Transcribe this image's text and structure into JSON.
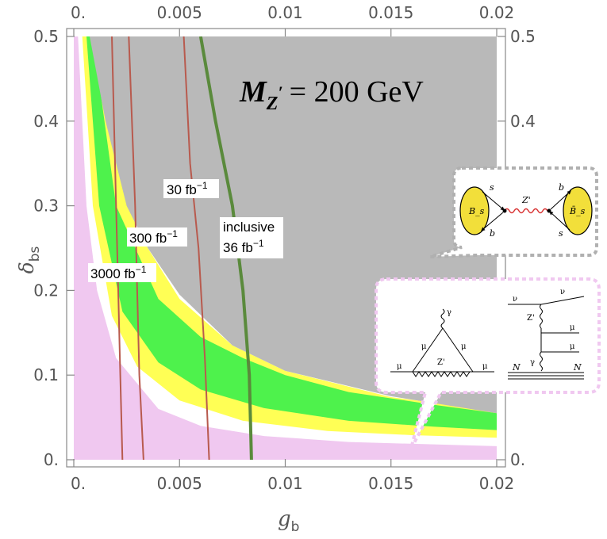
{
  "chart_data": {
    "type": "contour",
    "title": "M_Z' = 200 GeV",
    "title_parts": {
      "symbol": "M",
      "subscript": "Z",
      "prime": "′",
      "value": "= 200 GeV"
    },
    "xlabel": {
      "symbol": "g",
      "subscript": "b"
    },
    "ylabel": {
      "symbol": "δ",
      "subscript": "bs"
    },
    "xlim": [
      0,
      0.02
    ],
    "ylim": [
      0,
      0.5
    ],
    "x_ticks": [
      0,
      0.005,
      0.01,
      0.015,
      0.02
    ],
    "x_tick_labels": [
      "0.",
      "0.005",
      "0.01",
      "0.015",
      "0.02"
    ],
    "y_ticks": [
      0,
      0.1,
      0.2,
      0.3,
      0.4,
      0.5
    ],
    "y_tick_labels": [
      "0.",
      "0.1",
      "0.2",
      "0.3",
      "0.4",
      "0.5"
    ],
    "regions": [
      {
        "name": "excluded",
        "color": "#b9b9b9",
        "boundary_gb_delta": [
          [
            0.00075,
            0.5
          ],
          [
            0.0015,
            0.4
          ],
          [
            0.0025,
            0.3
          ],
          [
            0.0035,
            0.25
          ],
          [
            0.005,
            0.195
          ],
          [
            0.0075,
            0.135
          ],
          [
            0.01,
            0.105
          ],
          [
            0.015,
            0.075
          ],
          [
            0.02,
            0.055
          ]
        ]
      },
      {
        "name": "band-1sigma",
        "color": "#4ef24c",
        "edges_gb_delta": [
          [
            [
              0.0009,
              0.5
            ],
            [
              0.002,
              0.3
            ],
            [
              0.004,
              0.19
            ],
            [
              0.006,
              0.145
            ],
            [
              0.008,
              0.12
            ],
            [
              0.01,
              0.1
            ],
            [
              0.013,
              0.08
            ],
            [
              0.017,
              0.065
            ],
            [
              0.02,
              0.055
            ]
          ],
          [
            [
              0.0006,
              0.5
            ],
            [
              0.0012,
              0.3
            ],
            [
              0.0023,
              0.175
            ],
            [
              0.004,
              0.115
            ],
            [
              0.006,
              0.083
            ],
            [
              0.009,
              0.061
            ],
            [
              0.013,
              0.046
            ],
            [
              0.017,
              0.039
            ],
            [
              0.02,
              0.035
            ]
          ]
        ]
      },
      {
        "name": "band-2sigma",
        "color": "#ffff55",
        "edges_gb_delta": [
          [
            [
              0.0012,
              0.5
            ],
            [
              0.003,
              0.27
            ],
            [
              0.005,
              0.19
            ],
            [
              0.0075,
              0.135
            ],
            [
              0.01,
              0.105
            ],
            [
              0.015,
              0.074
            ],
            [
              0.02,
              0.058
            ]
          ],
          [
            [
              0.0004,
              0.5
            ],
            [
              0.0009,
              0.3
            ],
            [
              0.0018,
              0.17
            ],
            [
              0.003,
              0.11
            ],
            [
              0.005,
              0.07
            ],
            [
              0.008,
              0.046
            ],
            [
              0.012,
              0.034
            ],
            [
              0.016,
              0.029
            ],
            [
              0.02,
              0.026
            ]
          ]
        ]
      },
      {
        "name": "white-gap",
        "color": "#ffffff",
        "edge_gb_delta": [
          [
            0.0002,
            0.5
          ],
          [
            0.0006,
            0.3
          ],
          [
            0.0011,
            0.2
          ],
          [
            0.002,
            0.12
          ],
          [
            0.004,
            0.06
          ],
          [
            0.006,
            0.04
          ],
          [
            0.009,
            0.028
          ],
          [
            0.013,
            0.021
          ],
          [
            0.02,
            0.016
          ]
        ]
      },
      {
        "name": "pink-region",
        "color": "#f0c8f0"
      }
    ],
    "contours": [
      {
        "label": "3000 fb",
        "superscript": "−1",
        "color": "#b85a4e",
        "points": [
          [
            0.0018,
            0.5
          ],
          [
            0.002,
            0.3
          ],
          [
            0.0021,
            0.2
          ],
          [
            0.0022,
            0.1
          ],
          [
            0.0023,
            0
          ]
        ]
      },
      {
        "label": "300 fb",
        "superscript": "−1",
        "color": "#b85a4e",
        "points": [
          [
            0.0026,
            0.5
          ],
          [
            0.0029,
            0.3
          ],
          [
            0.003,
            0.2
          ],
          [
            0.0031,
            0.1
          ],
          [
            0.0033,
            0
          ]
        ]
      },
      {
        "label": "30 fb",
        "superscript": "−1",
        "color": "#b85a4e",
        "points": [
          [
            0.0052,
            0.5
          ],
          [
            0.0055,
            0.35
          ],
          [
            0.0059,
            0.25
          ],
          [
            0.0062,
            0.12
          ],
          [
            0.0064,
            0
          ]
        ]
      },
      {
        "label_lines": [
          "inclusive",
          "36 fb"
        ],
        "superscript": "−1",
        "color": "#5a8a3c",
        "points": [
          [
            0.006,
            0.5
          ],
          [
            0.0067,
            0.4
          ],
          [
            0.0075,
            0.3
          ],
          [
            0.008,
            0.2
          ],
          [
            0.0083,
            0.1
          ],
          [
            0.0084,
            0
          ]
        ]
      }
    ],
    "insets": [
      {
        "name": "bs-mixing-diagram",
        "labels": [
          "B_s",
          "s",
          "b",
          "Z'",
          "b",
          "s",
          "B̄_s"
        ]
      },
      {
        "name": "mu-g2-and-trident-diagrams",
        "labels": [
          "γ",
          "μ",
          "μ",
          "Z'",
          "μ",
          "μ",
          "ν",
          "ν",
          "Z'",
          "μ",
          "μ",
          "γ",
          "N",
          "N"
        ]
      }
    ]
  }
}
